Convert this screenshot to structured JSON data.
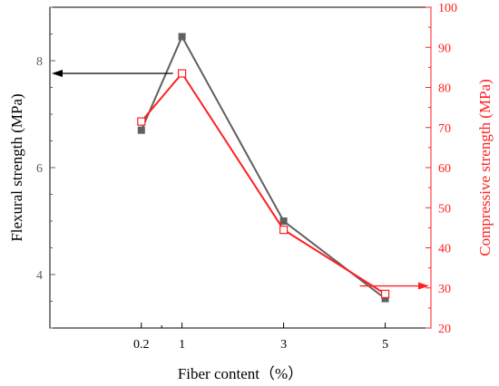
{
  "chart_data": {
    "type": "line",
    "title": "",
    "xlabel": "Fiber content（%）",
    "ylabel_left": "Flexural strength (MPa)",
    "ylabel_right": "Compressive strength (MPa)",
    "x": [
      0.2,
      1,
      3,
      5
    ],
    "xticks": [
      "0.2",
      "1",
      "3",
      "5"
    ],
    "xlim": [
      -1.6,
      5.9
    ],
    "ylim_left": [
      3.0,
      9.0
    ],
    "yticks_left": [
      "4",
      "6",
      "8"
    ],
    "ylim_right": [
      20,
      100
    ],
    "yticks_right": [
      "20",
      "30",
      "40",
      "50",
      "60",
      "70",
      "80",
      "90",
      "100"
    ],
    "grid": false,
    "series": [
      {
        "axis": "left",
        "color": "#606060",
        "marker": "filled-square",
        "values": [
          6.7,
          8.45,
          5.0,
          3.55
        ]
      },
      {
        "axis": "right",
        "color": "#ff2020",
        "marker": "open-square",
        "values": [
          71.5,
          83.5,
          44.5,
          28.5
        ]
      }
    ],
    "annotations": [
      {
        "type": "arrow",
        "series_index": 0,
        "direction": "left",
        "color": "#000000"
      },
      {
        "type": "arrow",
        "series_index": 1,
        "direction": "right",
        "color": "#ff2020"
      }
    ]
  }
}
